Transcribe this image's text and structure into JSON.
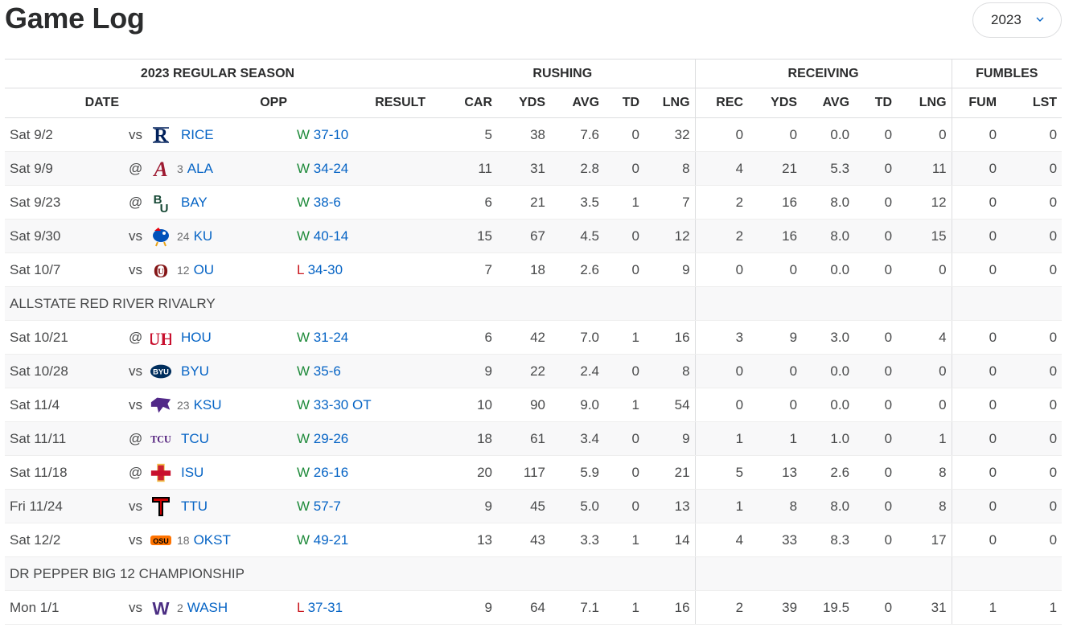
{
  "page_title": "Game Log",
  "season_select": {
    "value": "2023"
  },
  "table": {
    "section_label": "2023 REGULAR SEASON",
    "groups": {
      "rushing": "RUSHING",
      "receiving": "RECEIVING",
      "fumbles": "FUMBLES"
    },
    "columns": [
      "DATE",
      "OPP",
      "RESULT",
      "CAR",
      "YDS",
      "AVG",
      "TD",
      "LNG",
      "REC",
      "YDS",
      "AVG",
      "TD",
      "LNG",
      "FUM",
      "LST"
    ],
    "rows": [
      {
        "date": "Sat 9/2",
        "ha": "vs",
        "logo": "rice-logo-icon",
        "logo_color": "#00205b",
        "rank": "",
        "team": "RICE",
        "wl": "W",
        "score": "37-10",
        "car": "5",
        "ryds": "38",
        "ravg": "7.6",
        "rtd": "0",
        "rlng": "32",
        "rec": "0",
        "cyds": "0",
        "cavg": "0.0",
        "ctd": "0",
        "clng": "0",
        "fum": "0",
        "lst": "0"
      },
      {
        "date": "Sat 9/9",
        "ha": "@",
        "logo": "alabama-logo-icon",
        "logo_color": "#9e1b32",
        "rank": "3",
        "team": "ALA",
        "wl": "W",
        "score": "34-24",
        "car": "11",
        "ryds": "31",
        "ravg": "2.8",
        "rtd": "0",
        "rlng": "8",
        "rec": "4",
        "cyds": "21",
        "cavg": "5.3",
        "ctd": "0",
        "clng": "11",
        "fum": "0",
        "lst": "0"
      },
      {
        "date": "Sat 9/23",
        "ha": "@",
        "logo": "baylor-logo-icon",
        "logo_color": "#154734",
        "rank": "",
        "team": "BAY",
        "wl": "W",
        "score": "38-6",
        "car": "6",
        "ryds": "21",
        "ravg": "3.5",
        "rtd": "1",
        "rlng": "7",
        "rec": "2",
        "cyds": "16",
        "cavg": "8.0",
        "ctd": "0",
        "clng": "12",
        "fum": "0",
        "lst": "0"
      },
      {
        "date": "Sat 9/30",
        "ha": "vs",
        "logo": "kansas-logo-icon",
        "logo_color": "#0051ba",
        "rank": "24",
        "team": "KU",
        "wl": "W",
        "score": "40-14",
        "car": "15",
        "ryds": "67",
        "ravg": "4.5",
        "rtd": "0",
        "rlng": "12",
        "rec": "2",
        "cyds": "16",
        "cavg": "8.0",
        "ctd": "0",
        "clng": "15",
        "fum": "0",
        "lst": "0"
      },
      {
        "date": "Sat 10/7",
        "ha": "vs",
        "logo": "oklahoma-logo-icon",
        "logo_color": "#841617",
        "rank": "12",
        "team": "OU",
        "wl": "L",
        "score": "34-30",
        "car": "7",
        "ryds": "18",
        "ravg": "2.6",
        "rtd": "0",
        "rlng": "9",
        "rec": "0",
        "cyds": "0",
        "cavg": "0.0",
        "ctd": "0",
        "clng": "0",
        "fum": "0",
        "lst": "0"
      },
      {
        "note": "ALLSTATE RED RIVER RIVALRY"
      },
      {
        "date": "Sat 10/21",
        "ha": "@",
        "logo": "houston-logo-icon",
        "logo_color": "#c8102e",
        "rank": "",
        "team": "HOU",
        "wl": "W",
        "score": "31-24",
        "car": "6",
        "ryds": "42",
        "ravg": "7.0",
        "rtd": "1",
        "rlng": "16",
        "rec": "3",
        "cyds": "9",
        "cavg": "3.0",
        "ctd": "0",
        "clng": "4",
        "fum": "0",
        "lst": "0"
      },
      {
        "date": "Sat 10/28",
        "ha": "vs",
        "logo": "byu-logo-icon",
        "logo_color": "#002e5d",
        "rank": "",
        "team": "BYU",
        "wl": "W",
        "score": "35-6",
        "car": "9",
        "ryds": "22",
        "ravg": "2.4",
        "rtd": "0",
        "rlng": "8",
        "rec": "0",
        "cyds": "0",
        "cavg": "0.0",
        "ctd": "0",
        "clng": "0",
        "fum": "0",
        "lst": "0"
      },
      {
        "date": "Sat 11/4",
        "ha": "vs",
        "logo": "kstate-logo-icon",
        "logo_color": "#512888",
        "rank": "23",
        "team": "KSU",
        "wl": "W",
        "score": "33-30 OT",
        "car": "10",
        "ryds": "90",
        "ravg": "9.0",
        "rtd": "1",
        "rlng": "54",
        "rec": "0",
        "cyds": "0",
        "cavg": "0.0",
        "ctd": "0",
        "clng": "0",
        "fum": "0",
        "lst": "0"
      },
      {
        "date": "Sat 11/11",
        "ha": "@",
        "logo": "tcu-logo-icon",
        "logo_color": "#4d1979",
        "rank": "",
        "team": "TCU",
        "wl": "W",
        "score": "29-26",
        "car": "18",
        "ryds": "61",
        "ravg": "3.4",
        "rtd": "0",
        "rlng": "9",
        "rec": "1",
        "cyds": "1",
        "cavg": "1.0",
        "ctd": "0",
        "clng": "1",
        "fum": "0",
        "lst": "0"
      },
      {
        "date": "Sat 11/18",
        "ha": "@",
        "logo": "iowa-state-logo-icon",
        "logo_color": "#c8102e",
        "rank": "",
        "team": "ISU",
        "wl": "W",
        "score": "26-16",
        "car": "20",
        "ryds": "117",
        "ravg": "5.9",
        "rtd": "0",
        "rlng": "21",
        "rec": "5",
        "cyds": "13",
        "cavg": "2.6",
        "ctd": "0",
        "clng": "8",
        "fum": "0",
        "lst": "0"
      },
      {
        "date": "Fri 11/24",
        "ha": "vs",
        "logo": "texas-tech-logo-icon",
        "logo_color": "#cc0000",
        "rank": "",
        "team": "TTU",
        "wl": "W",
        "score": "57-7",
        "car": "9",
        "ryds": "45",
        "ravg": "5.0",
        "rtd": "0",
        "rlng": "13",
        "rec": "1",
        "cyds": "8",
        "cavg": "8.0",
        "ctd": "0",
        "clng": "8",
        "fum": "0",
        "lst": "0"
      },
      {
        "date": "Sat 12/2",
        "ha": "vs",
        "logo": "oklahoma-state-logo-icon",
        "logo_color": "#ff7300",
        "rank": "18",
        "team": "OKST",
        "wl": "W",
        "score": "49-21",
        "car": "13",
        "ryds": "43",
        "ravg": "3.3",
        "rtd": "1",
        "rlng": "14",
        "rec": "4",
        "cyds": "33",
        "cavg": "8.3",
        "ctd": "0",
        "clng": "17",
        "fum": "0",
        "lst": "0"
      },
      {
        "note": "DR PEPPER BIG 12 CHAMPIONSHIP"
      },
      {
        "date": "Mon 1/1",
        "ha": "vs",
        "logo": "washington-logo-icon",
        "logo_color": "#4b2e83",
        "rank": "2",
        "team": "WASH",
        "wl": "L",
        "score": "37-31",
        "car": "9",
        "ryds": "64",
        "ravg": "7.1",
        "rtd": "1",
        "rlng": "16",
        "rec": "2",
        "cyds": "39",
        "cavg": "19.5",
        "ctd": "0",
        "clng": "31",
        "fum": "1",
        "lst": "1"
      }
    ]
  },
  "colors": {
    "link": "#0664c5",
    "win": "#1e8a3a",
    "loss": "#c9161d"
  }
}
